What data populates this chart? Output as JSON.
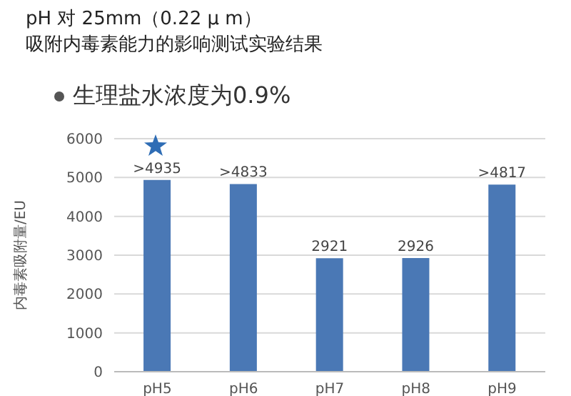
{
  "chart_data": {
    "type": "bar",
    "title": "pH 对 25mm（0.22 μ m）",
    "subtitle": "吸附内毒素能力的影响测试实验结果",
    "annotations": [
      "生理盐水浓度为0.9%"
    ],
    "ylabel": "内毒素吸附量/EU",
    "categories": [
      "pH5",
      "pH6",
      "pH7",
      "pH8",
      "pH9"
    ],
    "values": [
      4935,
      4833,
      2921,
      2926,
      4817
    ],
    "value_labels": [
      ">4935",
      ">4833",
      "2921",
      "2926",
      ">4817"
    ],
    "color": "#4a78b5",
    "ylim": [
      0,
      6000
    ],
    "yticks": [
      0,
      1000,
      2000,
      3000,
      4000,
      5000,
      6000
    ],
    "grid": "y"
  }
}
